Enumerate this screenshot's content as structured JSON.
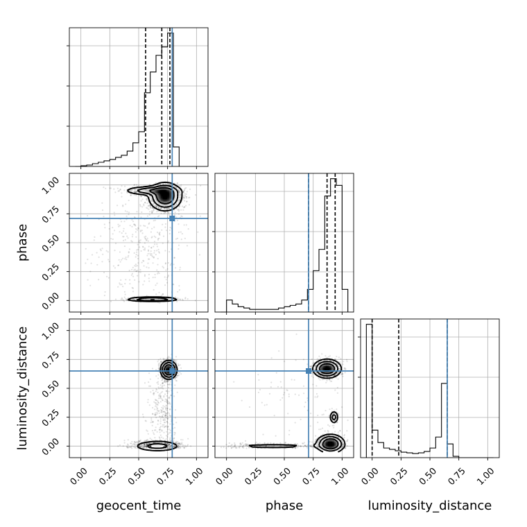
{
  "chart_data": {
    "type": "corner",
    "parameters": [
      "geocent_time",
      "phase",
      "luminosity_distance"
    ],
    "ticks": [
      "0.00",
      "0.25",
      "0.50",
      "0.75",
      "1.00"
    ],
    "range": [
      -0.1,
      1.1
    ],
    "grid": true,
    "truth_color": "#4682b4",
    "truths": {
      "geocent_time": 0.79,
      "phase": 0.71,
      "luminosity_distance": 0.65
    },
    "marginals": {
      "geocent_time": {
        "quantiles": [
          0.56,
          0.7,
          0.77
        ],
        "bin_edges": [
          -0.05,
          0.0,
          0.05,
          0.1,
          0.15,
          0.2,
          0.25,
          0.3,
          0.35,
          0.4,
          0.45,
          0.5,
          0.55,
          0.6,
          0.65,
          0.7,
          0.75,
          0.8,
          0.85
        ],
        "counts": [
          0.0,
          0.005,
          0.01,
          0.02,
          0.03,
          0.04,
          0.05,
          0.065,
          0.08,
          0.11,
          0.17,
          0.25,
          0.53,
          0.68,
          0.8,
          0.86,
          0.96,
          0.14
        ]
      },
      "phase": {
        "quantiles": [
          0.71,
          0.87,
          0.94
        ],
        "bin_edges": [
          -0.05,
          0.0,
          0.05,
          0.1,
          0.15,
          0.2,
          0.25,
          0.3,
          0.35,
          0.4,
          0.45,
          0.5,
          0.55,
          0.6,
          0.65,
          0.7,
          0.75,
          0.8,
          0.85,
          0.9,
          0.95,
          1.0,
          1.05
        ],
        "counts": [
          0.0,
          0.09,
          0.06,
          0.04,
          0.03,
          0.02,
          0.02,
          0.02,
          0.02,
          0.02,
          0.03,
          0.04,
          0.05,
          0.06,
          0.09,
          0.17,
          0.31,
          0.47,
          0.87,
          1.0,
          0.95,
          0.17
        ]
      },
      "luminosity_distance": {
        "quantiles": [
          0.0,
          0.23,
          0.65
        ],
        "bin_edges": [
          -0.05,
          0.0,
          0.05,
          0.1,
          0.15,
          0.2,
          0.25,
          0.3,
          0.35,
          0.4,
          0.45,
          0.5,
          0.55,
          0.6,
          0.65,
          0.7,
          0.75,
          0.8,
          0.85,
          0.9,
          0.95,
          1.0,
          1.05
        ],
        "counts": [
          0.97,
          0.2,
          0.11,
          0.07,
          0.06,
          0.05,
          0.04,
          0.035,
          0.03,
          0.035,
          0.045,
          0.07,
          0.15,
          0.54,
          0.1,
          0.01,
          0.0,
          0.0,
          0.0,
          0.0,
          0.0,
          0.0
        ]
      }
    },
    "joint": [
      {
        "x": "geocent_time",
        "y": "phase",
        "modes": [
          {
            "x": 0.73,
            "y": 0.9,
            "sx": 0.07,
            "sy": 0.06,
            "w": 0.55
          },
          {
            "x": 0.6,
            "y": 0.95,
            "sx": 0.12,
            "sy": 0.02,
            "w": 0.15
          },
          {
            "x": 0.62,
            "y": 0.01,
            "sx": 0.12,
            "sy": 0.01,
            "w": 0.1
          },
          {
            "x": 0.55,
            "y": 0.45,
            "sx": 0.2,
            "sy": 0.28,
            "w": 0.2
          }
        ]
      },
      {
        "x": "geocent_time",
        "y": "luminosity_distance",
        "modes": [
          {
            "x": 0.76,
            "y": 0.66,
            "sx": 0.035,
            "sy": 0.04,
            "w": 0.48
          },
          {
            "x": 0.66,
            "y": 0.0,
            "sx": 0.11,
            "sy": 0.025,
            "w": 0.38
          },
          {
            "x": 0.7,
            "y": 0.3,
            "sx": 0.06,
            "sy": 0.16,
            "w": 0.14
          }
        ]
      },
      {
        "x": "phase",
        "y": "luminosity_distance",
        "modes": [
          {
            "x": 0.87,
            "y": 0.67,
            "sx": 0.06,
            "sy": 0.04,
            "w": 0.4
          },
          {
            "x": 0.9,
            "y": 0.02,
            "sx": 0.06,
            "sy": 0.04,
            "w": 0.4
          },
          {
            "x": 0.4,
            "y": 0.0,
            "sx": 0.28,
            "sy": 0.015,
            "w": 0.12
          },
          {
            "x": 0.93,
            "y": 0.25,
            "sx": 0.02,
            "sy": 0.03,
            "w": 0.04
          },
          {
            "x": 0.6,
            "y": 0.4,
            "sx": 0.25,
            "sy": 0.22,
            "w": 0.04
          }
        ]
      }
    ]
  }
}
